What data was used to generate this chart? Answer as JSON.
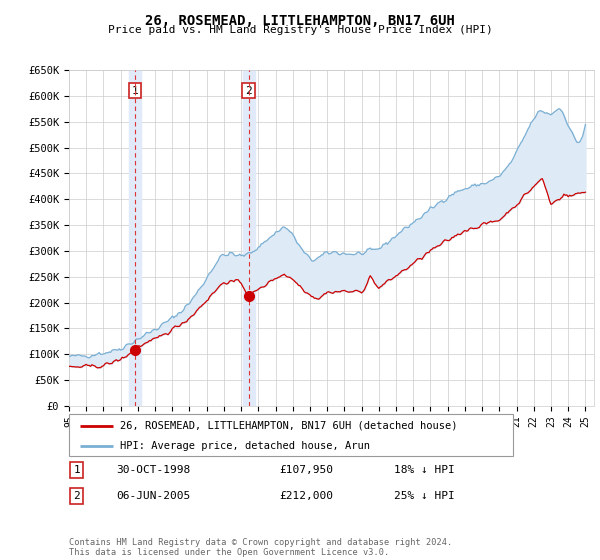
{
  "title": "26, ROSEMEAD, LITTLEHAMPTON, BN17 6UH",
  "subtitle": "Price paid vs. HM Land Registry's House Price Index (HPI)",
  "ylim": [
    0,
    650000
  ],
  "yticks": [
    0,
    50000,
    100000,
    150000,
    200000,
    250000,
    300000,
    350000,
    400000,
    450000,
    500000,
    550000,
    600000,
    650000
  ],
  "ytick_labels": [
    "£0",
    "£50K",
    "£100K",
    "£150K",
    "£200K",
    "£250K",
    "£300K",
    "£350K",
    "£400K",
    "£450K",
    "£500K",
    "£550K",
    "£600K",
    "£650K"
  ],
  "xlim_start": 1995.0,
  "xlim_end": 2025.5,
  "vline1_x": 1998.83,
  "vline2_x": 2005.43,
  "sale1_date": "30-OCT-1998",
  "sale1_price": "£107,950",
  "sale1_hpi": "18% ↓ HPI",
  "sale2_date": "06-JUN-2005",
  "sale2_price": "£212,000",
  "sale2_hpi": "25% ↓ HPI",
  "legend_line1": "26, ROSEMEAD, LITTLEHAMPTON, BN17 6UH (detached house)",
  "legend_line2": "HPI: Average price, detached house, Arun",
  "footer": "Contains HM Land Registry data © Crown copyright and database right 2024.\nThis data is licensed under the Open Government Licence v3.0.",
  "line_color_red": "#cc0000",
  "line_color_blue": "#7aafd4",
  "shade_color": "#deeaf5",
  "grid_color": "#cccccc",
  "bg_color": "#ffffff",
  "vspan_color": "#e0eaf8"
}
